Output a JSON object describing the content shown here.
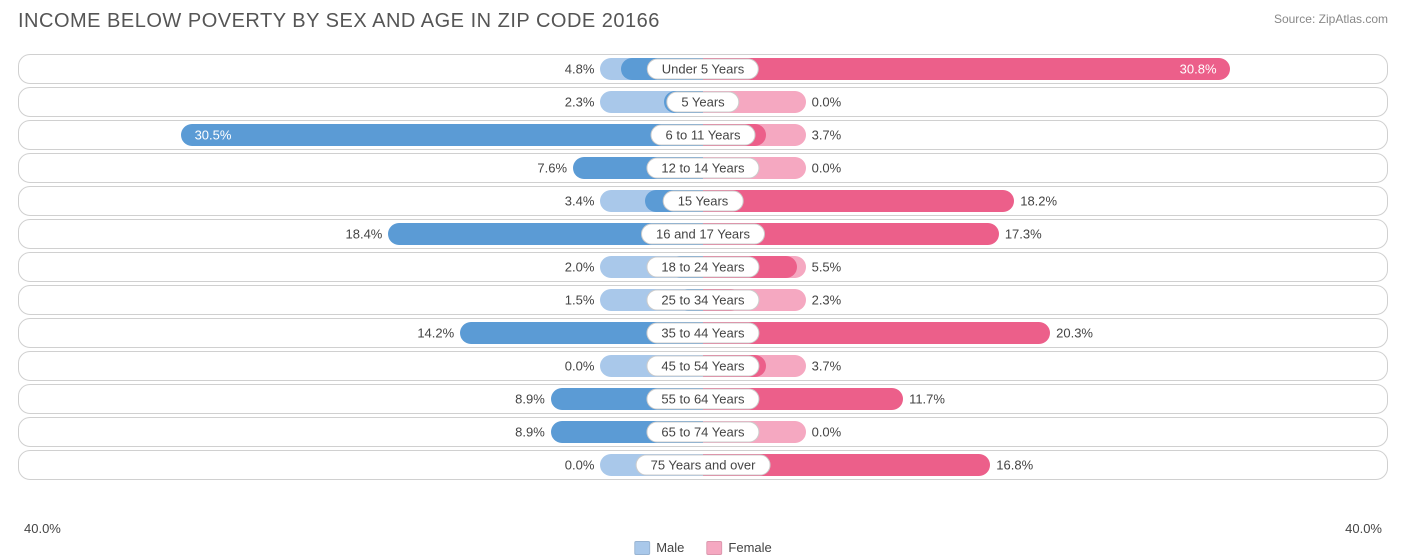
{
  "title": "INCOME BELOW POVERTY BY SEX AND AGE IN ZIP CODE 20166",
  "source": "Source: ZipAtlas.com",
  "chart": {
    "type": "diverging-bar",
    "axis_max": 40.0,
    "axis_label_left": "40.0%",
    "axis_label_right": "40.0%",
    "base_extent_pct": 6.0,
    "colors": {
      "male": "#5b9bd5",
      "male_base": "#a9c8ea",
      "female": "#ec5f8a",
      "female_base": "#f5a8c1",
      "row_border": "#d0d0d0",
      "background": "#ffffff",
      "text": "#444444",
      "title_text": "#555555"
    },
    "legend": [
      {
        "label": "Male",
        "color": "#a9c8ea"
      },
      {
        "label": "Female",
        "color": "#f5a8c1"
      }
    ],
    "fontsize": {
      "title": 20,
      "labels": 13,
      "source": 12
    },
    "rows": [
      {
        "category": "Under 5 Years",
        "male": 4.8,
        "female": 30.8,
        "female_label_inside": true
      },
      {
        "category": "5 Years",
        "male": 2.3,
        "female": 0.0
      },
      {
        "category": "6 to 11 Years",
        "male": 30.5,
        "female": 3.7,
        "male_label_inside": true
      },
      {
        "category": "12 to 14 Years",
        "male": 7.6,
        "female": 0.0
      },
      {
        "category": "15 Years",
        "male": 3.4,
        "female": 18.2
      },
      {
        "category": "16 and 17 Years",
        "male": 18.4,
        "female": 17.3
      },
      {
        "category": "18 to 24 Years",
        "male": 2.0,
        "female": 5.5
      },
      {
        "category": "25 to 34 Years",
        "male": 1.5,
        "female": 2.3
      },
      {
        "category": "35 to 44 Years",
        "male": 14.2,
        "female": 20.3
      },
      {
        "category": "45 to 54 Years",
        "male": 0.0,
        "female": 3.7
      },
      {
        "category": "55 to 64 Years",
        "male": 8.9,
        "female": 11.7
      },
      {
        "category": "65 to 74 Years",
        "male": 8.9,
        "female": 0.0
      },
      {
        "category": "75 Years and over",
        "male": 0.0,
        "female": 16.8
      }
    ]
  }
}
